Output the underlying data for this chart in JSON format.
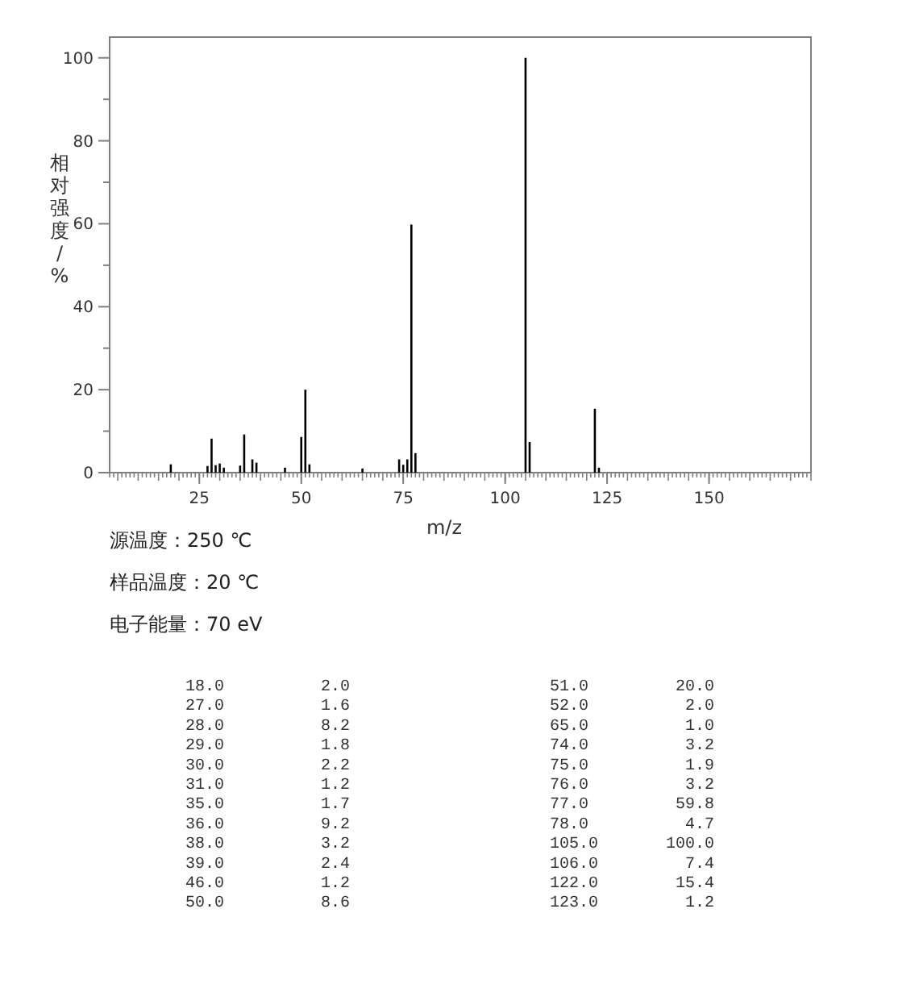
{
  "chart_data": {
    "type": "bar",
    "xlabel": "m/z",
    "ylabel": "相对强度/%",
    "x": [
      18,
      27,
      28,
      29,
      30,
      31,
      35,
      36,
      38,
      39,
      46,
      50,
      51,
      52,
      65,
      74,
      75,
      76,
      77,
      78,
      105,
      106,
      122,
      123
    ],
    "values": [
      2.0,
      1.6,
      8.2,
      1.8,
      2.2,
      1.2,
      1.7,
      9.2,
      3.2,
      2.4,
      1.2,
      8.6,
      20.0,
      2.0,
      1.0,
      3.2,
      1.9,
      3.2,
      59.8,
      4.7,
      100.0,
      7.4,
      15.4,
      1.2
    ],
    "color": "#000000",
    "xlim": [
      3,
      175
    ],
    "ylim": [
      0,
      105
    ],
    "xticks": [
      25,
      50,
      75,
      100,
      125,
      150
    ],
    "yticks": [
      0,
      20,
      40,
      60,
      80,
      100
    ],
    "annotations": [
      "源温度：250 ℃",
      "样品温度：20 ℃",
      "电子能量：70 eV",
      "18.0          2.0",
      "27.0          1.6",
      "28.0          8.2",
      "29.0          1.8",
      "30.0          2.2",
      "31.0          1.2",
      "35.0          1.7",
      "36.0          9.2",
      "38.0          3.2",
      "39.0          2.4",
      "46.0          1.2",
      "50.0          8.6",
      "51.0         20.0",
      "52.0          2.0",
      "65.0          1.0",
      "74.0          3.2",
      "75.0          1.9",
      "76.0          3.2",
      "77.0         59.8",
      "78.0          4.7",
      "105.0       100.0",
      "106.0         7.4",
      "122.0        15.4",
      "123.0         1.2"
    ]
  }
}
